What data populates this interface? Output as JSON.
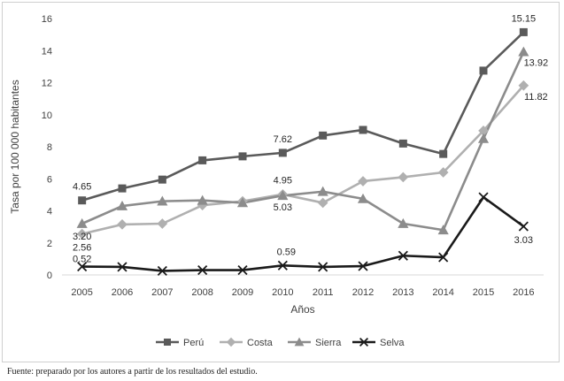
{
  "chart_data": {
    "type": "line",
    "title": "",
    "xlabel": "Años",
    "ylabel": "Tasa por 100 000 habitantes",
    "ylim": [
      0,
      16
    ],
    "yticks": [
      "0",
      "2",
      "4",
      "6",
      "8",
      "10",
      "12",
      "14",
      "16"
    ],
    "categories": [
      "2005",
      "2006",
      "2007",
      "2008",
      "2009",
      "2010",
      "2011",
      "2012",
      "2013",
      "2014",
      "2015",
      "2016"
    ],
    "grid": false,
    "legend_position": "bottom",
    "series": [
      {
        "name": "Perú",
        "color": "#5a5a5a",
        "marker": "square",
        "values": [
          4.65,
          5.4,
          5.95,
          7.15,
          7.4,
          7.62,
          8.7,
          9.05,
          8.2,
          7.55,
          12.75,
          15.15
        ],
        "labels": {
          "0": "4.65",
          "5": "7.62",
          "11": "15.15"
        }
      },
      {
        "name": "Costa",
        "color": "#b0b0b0",
        "marker": "diamond",
        "values": [
          2.56,
          3.15,
          3.2,
          4.35,
          4.6,
          5.03,
          4.5,
          5.85,
          6.1,
          6.4,
          9.0,
          11.82
        ],
        "labels": {
          "0": "2.56",
          "5": "5.03",
          "11": "11.82"
        }
      },
      {
        "name": "Sierra",
        "color": "#8c8c8c",
        "marker": "triangle",
        "values": [
          3.2,
          4.3,
          4.6,
          4.65,
          4.5,
          4.95,
          5.2,
          4.75,
          3.2,
          2.8,
          8.5,
          13.92
        ],
        "labels": {
          "0": "3.20",
          "5": "4.95",
          "11": "13.92"
        }
      },
      {
        "name": "Selva",
        "color": "#1a1a1a",
        "marker": "x",
        "values": [
          0.52,
          0.5,
          0.25,
          0.3,
          0.3,
          0.59,
          0.5,
          0.55,
          1.2,
          1.1,
          4.85,
          3.03
        ],
        "labels": {
          "0": "0.52",
          "5": "0.59",
          "11": "3.03"
        }
      }
    ]
  },
  "source_note": "Fuente: preparado por los autores a partir de los resultados del estudio."
}
